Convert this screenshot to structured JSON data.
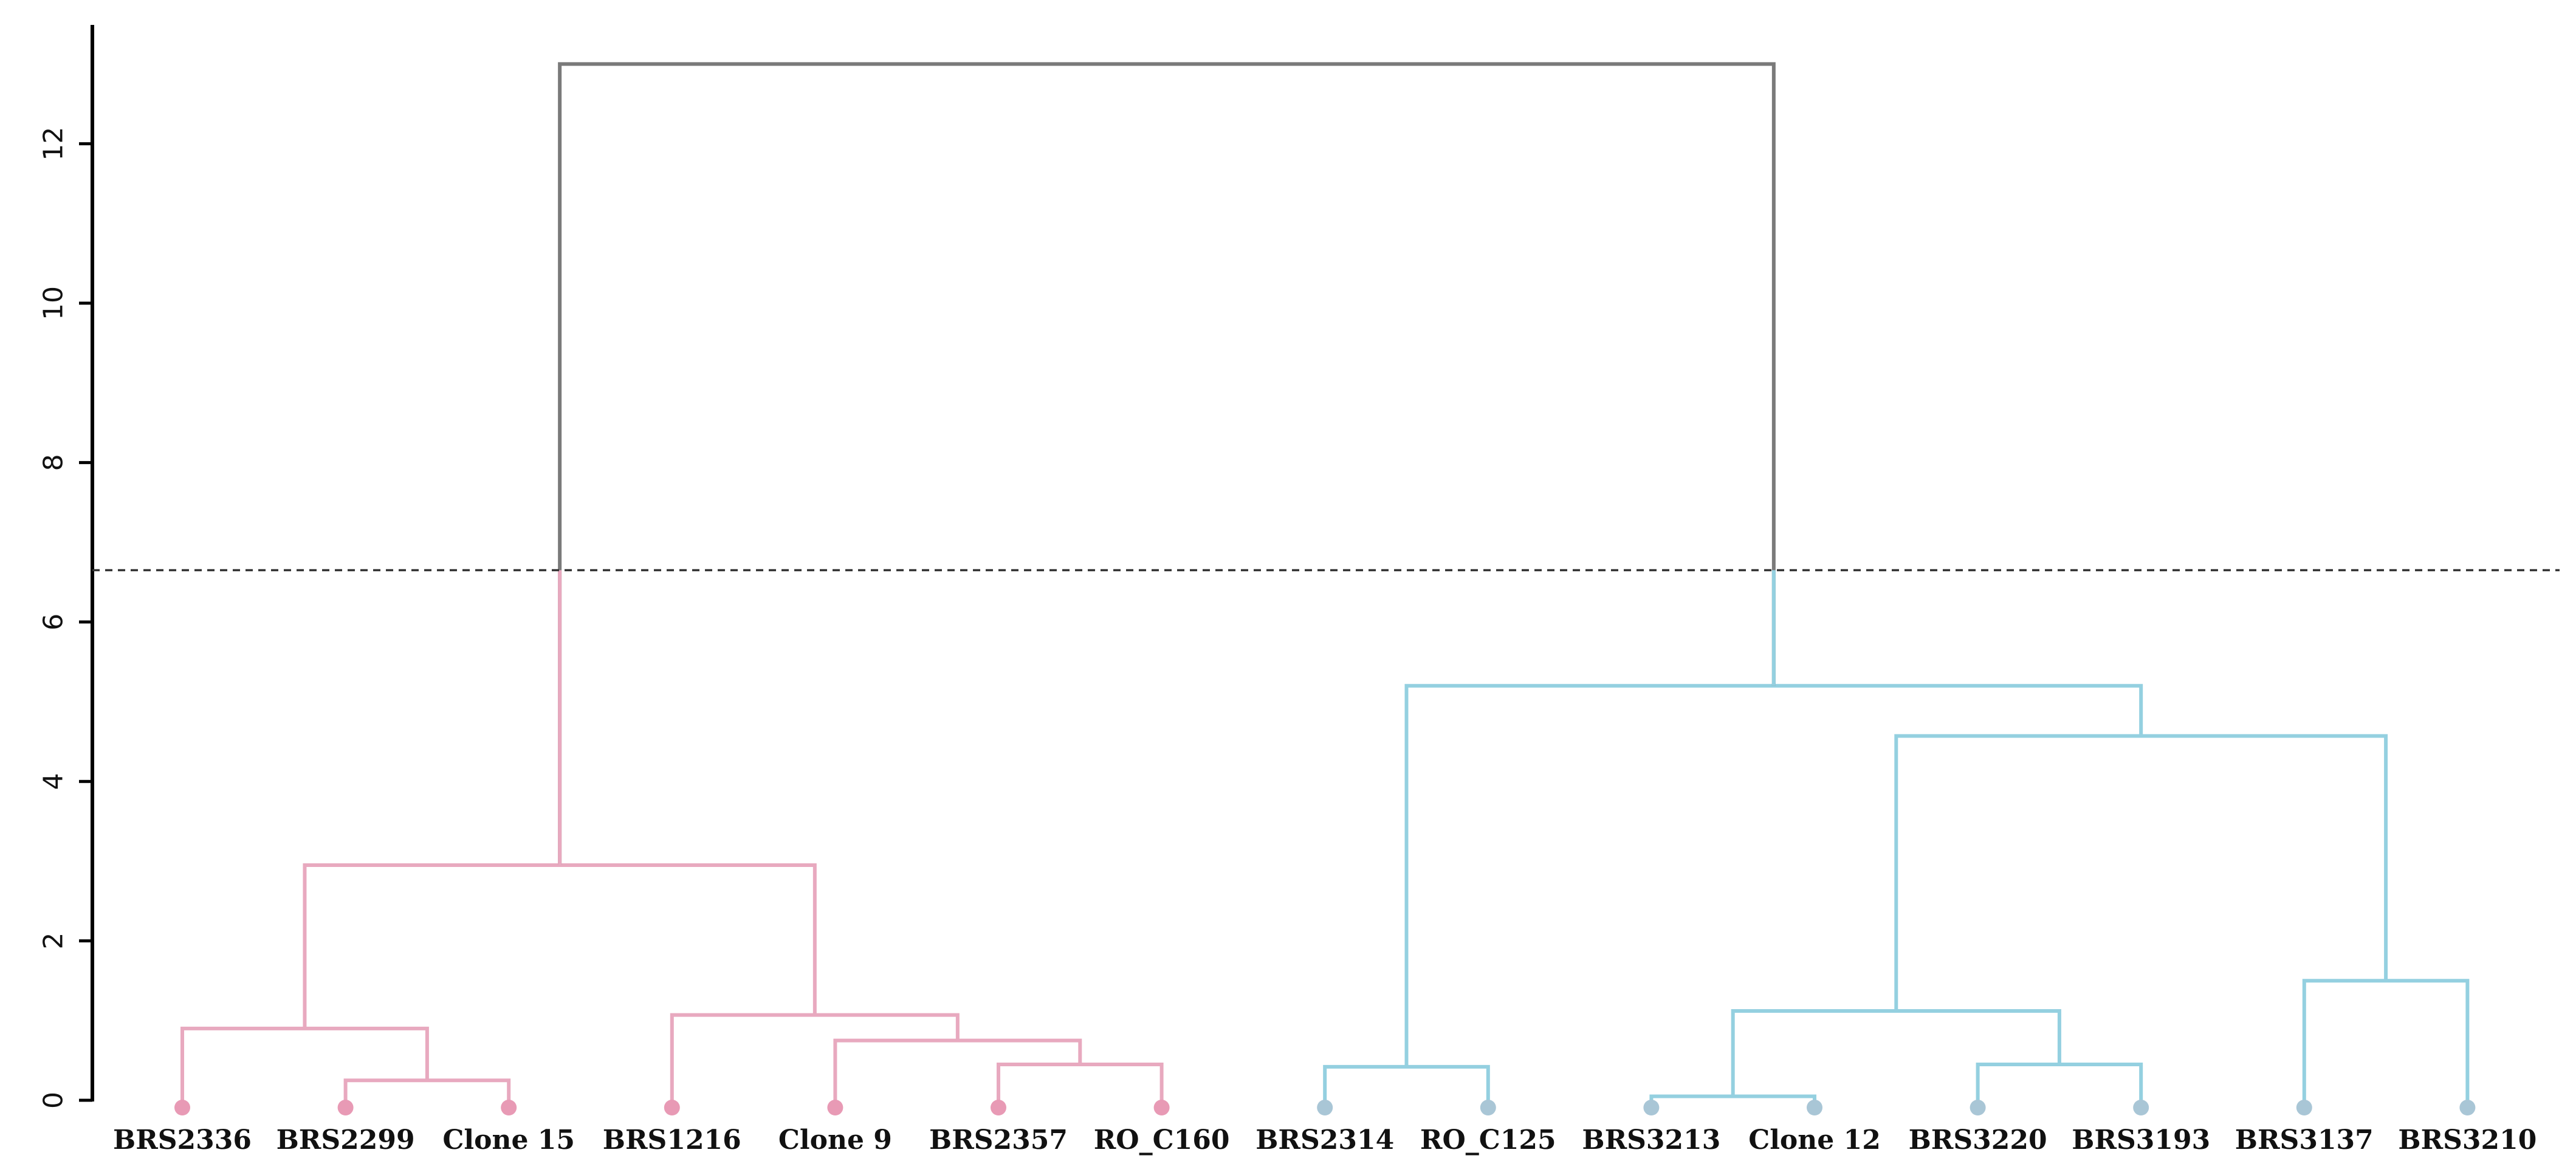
{
  "chart_data": {
    "type": "dendrogram",
    "title": "",
    "xlabel": "",
    "ylabel": "",
    "ylim": [
      0,
      13
    ],
    "yticks": [
      "0",
      "2",
      "4",
      "6",
      "8",
      "10",
      "12"
    ],
    "cut_height": 6.65,
    "leaves": [
      {
        "label": "BRS2336",
        "group": "pink"
      },
      {
        "label": "BRS2299",
        "group": "pink"
      },
      {
        "label": "Clone 15",
        "group": "pink"
      },
      {
        "label": "BRS1216",
        "group": "pink"
      },
      {
        "label": "Clone 9",
        "group": "pink"
      },
      {
        "label": "BRS2357",
        "group": "pink"
      },
      {
        "label": "RO_C160",
        "group": "pink"
      },
      {
        "label": "BRS2314",
        "group": "blue"
      },
      {
        "label": "RO_C125",
        "group": "blue"
      },
      {
        "label": "BRS3213",
        "group": "blue"
      },
      {
        "label": "Clone 12",
        "group": "blue"
      },
      {
        "label": "BRS3220",
        "group": "blue"
      },
      {
        "label": "BRS3193",
        "group": "blue"
      },
      {
        "label": "BRS3137",
        "group": "blue"
      },
      {
        "label": "BRS3210",
        "group": "blue"
      }
    ],
    "merges": [
      {
        "left": "L1",
        "right": "L2",
        "height": 0.25,
        "color": "pink"
      },
      {
        "left": "L0",
        "right": "M0",
        "height": 0.9,
        "color": "pink"
      },
      {
        "left": "L5",
        "right": "L6",
        "height": 0.45,
        "color": "pink"
      },
      {
        "left": "L4",
        "right": "M2",
        "height": 0.75,
        "color": "pink"
      },
      {
        "left": "L3",
        "right": "M3",
        "height": 1.07,
        "color": "pink"
      },
      {
        "left": "M1",
        "right": "M4",
        "height": 2.95,
        "color": "pink"
      },
      {
        "left": "L7",
        "right": "L8",
        "height": 0.42,
        "color": "blue"
      },
      {
        "left": "L9",
        "right": "L10",
        "height": 0.05,
        "color": "blue"
      },
      {
        "left": "L11",
        "right": "L12",
        "height": 0.45,
        "color": "blue"
      },
      {
        "left": "M7",
        "right": "M8",
        "height": 1.12,
        "color": "blue"
      },
      {
        "left": "L13",
        "right": "L14",
        "height": 1.5,
        "color": "blue"
      },
      {
        "left": "M9",
        "right": "M10",
        "height": 4.57,
        "color": "blue"
      },
      {
        "left": "M6",
        "right": "M11",
        "height": 5.2,
        "color": "blue"
      },
      {
        "left": "M5",
        "right": "M12",
        "height": 13.0,
        "color": "gray"
      }
    ],
    "colors": {
      "pink": "#e8a9bf",
      "blue": "#94d0e0",
      "gray": "#7a7a7a",
      "pink_dot": "#e89ab5",
      "blue_dot": "#a9c6d6",
      "axis": "#000000",
      "cutline": "#333333"
    }
  }
}
